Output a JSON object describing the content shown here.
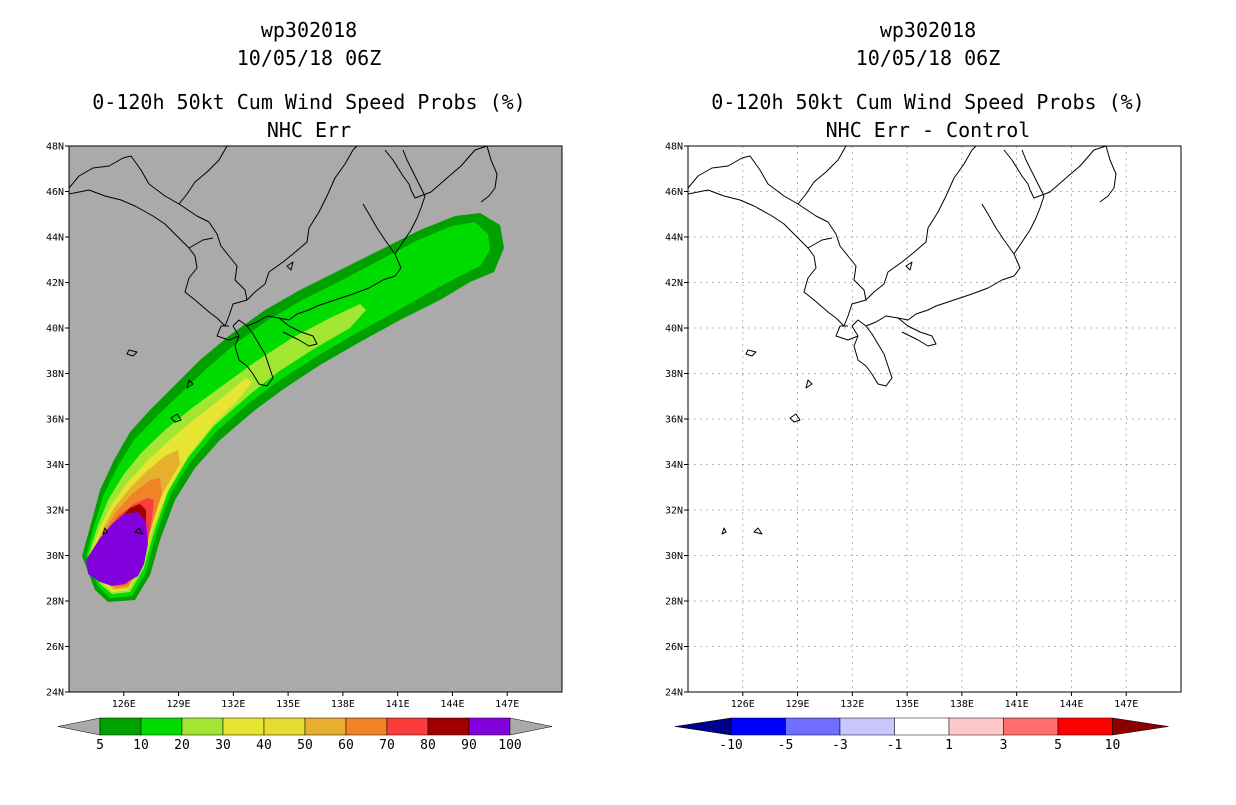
{
  "panels": [
    {
      "title_line1": "wp302018",
      "title_line2": "10/05/18 06Z",
      "title_line3": "0-120h 50kt Cum Wind Speed Probs (%)",
      "title_line4": "NHC Err"
    },
    {
      "title_line1": "wp302018",
      "title_line2": "10/05/18 06Z",
      "title_line3": "0-120h 50kt Cum Wind Speed Probs (%)",
      "title_line4": "NHC Err - Control"
    }
  ],
  "axes": {
    "lat_ticks": [
      "48N",
      "46N",
      "44N",
      "42N",
      "40N",
      "38N",
      "36N",
      "34N",
      "32N",
      "30N",
      "28N",
      "26N",
      "24N"
    ],
    "lon_ticks": [
      "126E",
      "129E",
      "132E",
      "135E",
      "138E",
      "141E",
      "144E",
      "147E"
    ]
  },
  "colorbar_left": {
    "labels": [
      "5",
      "10",
      "20",
      "30",
      "40",
      "50",
      "60",
      "70",
      "80",
      "90",
      "100"
    ],
    "colors": [
      "#00a000",
      "#00dc00",
      "#a0e632",
      "#e6e632",
      "#e6dc32",
      "#e6af2d",
      "#f08228",
      "#fa3c3c",
      "#a00000",
      "#8200dc"
    ],
    "extend_color": "#aaaaaa"
  },
  "colorbar_right": {
    "labels": [
      "-10",
      "-5",
      "-3",
      "-1",
      "1",
      "3",
      "5",
      "10"
    ],
    "colors": [
      "#0000ff",
      "#6e6eff",
      "#c8c8ff",
      "#ffffff",
      "#ffc8c8",
      "#ff6e6e",
      "#ff0000"
    ],
    "low_color": "#00008c",
    "high_color": "#8c0000"
  },
  "chart_data": [
    {
      "type": "heatmap",
      "lat_range": [
        24,
        48
      ],
      "lon_range": [
        123,
        150
      ],
      "variable": "0-120h 50kt cumulative wind speed probability (%)",
      "contour_levels": [
        5,
        10,
        20,
        30,
        40,
        50,
        60,
        70,
        80,
        90,
        100
      ],
      "background_color": "#aaaaaa",
      "maximum_region": "90-100% near 124-126E, 29-32N",
      "swath_extent": "from about 29N 124E northeast to about 44N 147E"
    },
    {
      "type": "heatmap",
      "lat_range": [
        24,
        48
      ],
      "lon_range": [
        123,
        150
      ],
      "variable": "difference NHC Err - Control (%)",
      "contour_levels": [
        -10,
        -5,
        -3,
        -1,
        1,
        3,
        5,
        10
      ],
      "field": "all values between -1 and 1 (blank)"
    }
  ]
}
